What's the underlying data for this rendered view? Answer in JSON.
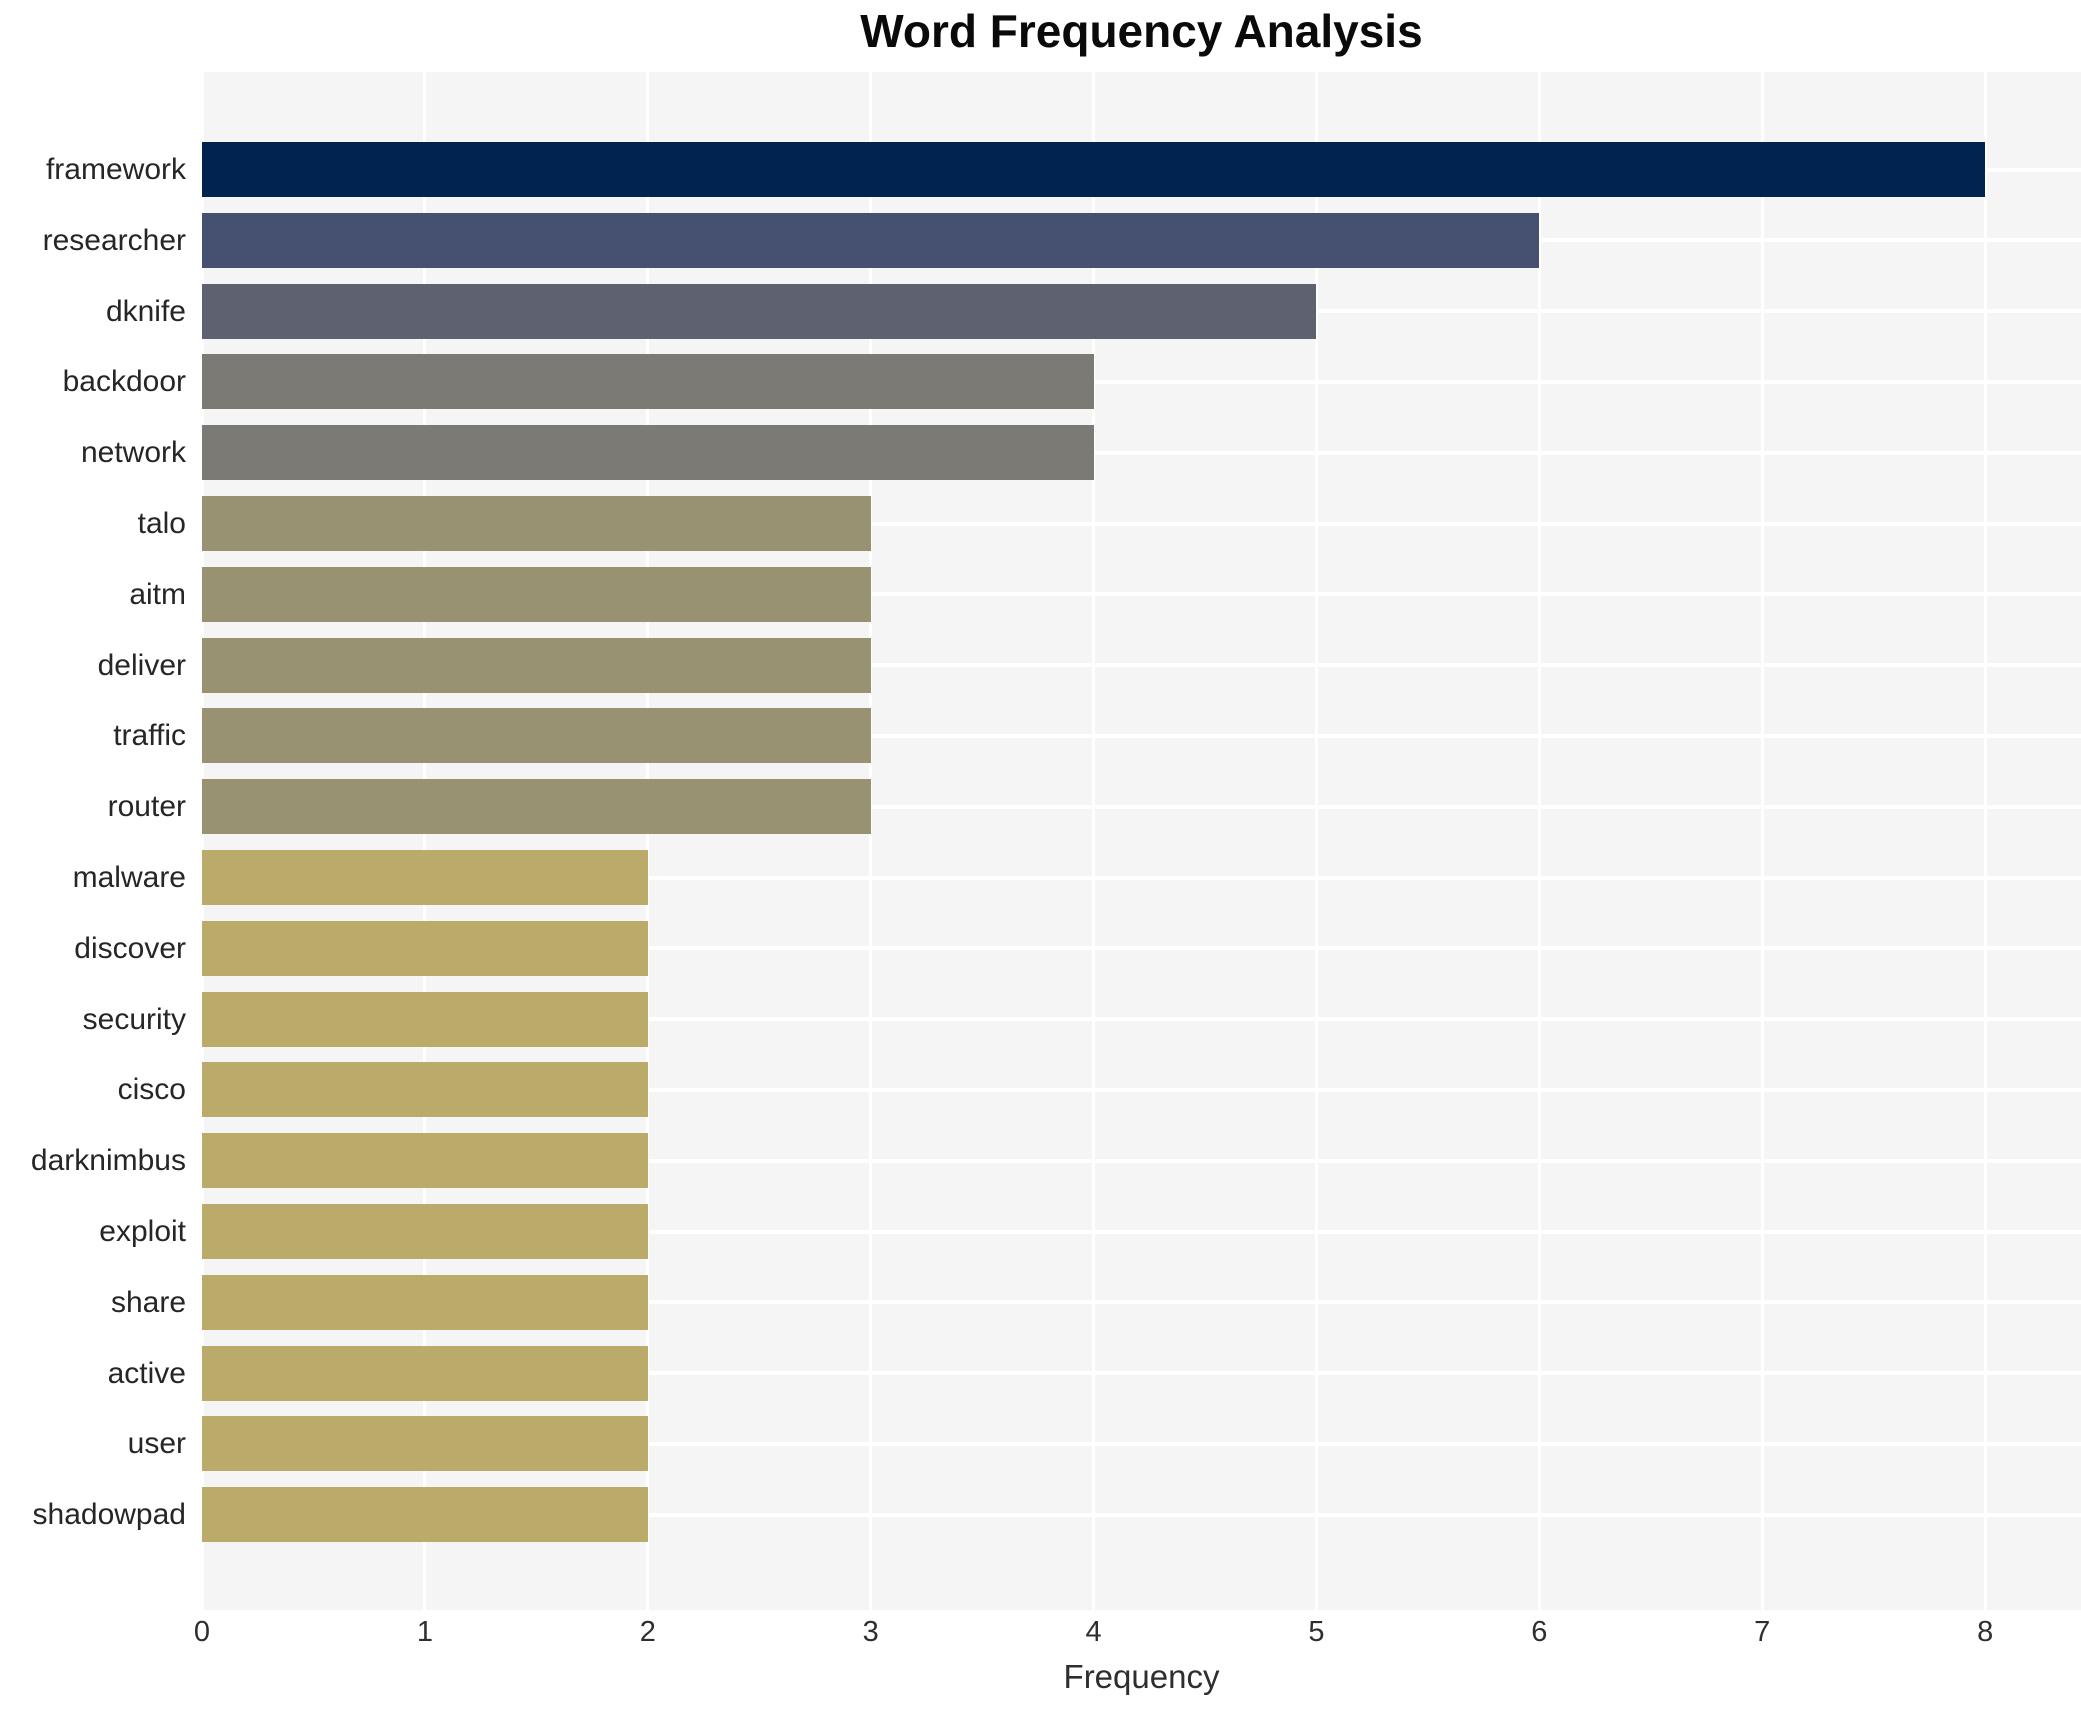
{
  "chart_data": {
    "type": "bar",
    "orientation": "horizontal",
    "title": "Word Frequency Analysis",
    "xlabel": "Frequency",
    "ylabel": "",
    "legend": "none",
    "grid": true,
    "xlim": [
      0,
      8.43
    ],
    "xticks": [
      0,
      1,
      2,
      3,
      4,
      5,
      6,
      7,
      8
    ],
    "categories": [
      "framework",
      "researcher",
      "dknife",
      "backdoor",
      "network",
      "talo",
      "aitm",
      "deliver",
      "traffic",
      "router",
      "malware",
      "discover",
      "security",
      "cisco",
      "darknimbus",
      "exploit",
      "share",
      "active",
      "user",
      "shadowpad"
    ],
    "values": [
      8,
      6,
      5,
      4,
      4,
      3,
      3,
      3,
      3,
      3,
      2,
      2,
      2,
      2,
      2,
      2,
      2,
      2,
      2,
      2
    ],
    "bar_colors": [
      "#012350",
      "#465070",
      "#5d6170",
      "#7b7a75",
      "#7b7a75",
      "#999272",
      "#999272",
      "#999272",
      "#999272",
      "#999272",
      "#bbab6a",
      "#bbab6a",
      "#bbab6a",
      "#bbab6a",
      "#bbab6a",
      "#bbab6a",
      "#bbab6a",
      "#bbab6a",
      "#bbab6a",
      "#bbab6a"
    ],
    "colors": {
      "panel_bg": "#f5f5f6",
      "grid_color": "#ffffff",
      "page_bg": "#ffffff",
      "title_color": "#0a0a0a",
      "label_color": "#262626",
      "tick_color": "#2e2e2e"
    }
  }
}
